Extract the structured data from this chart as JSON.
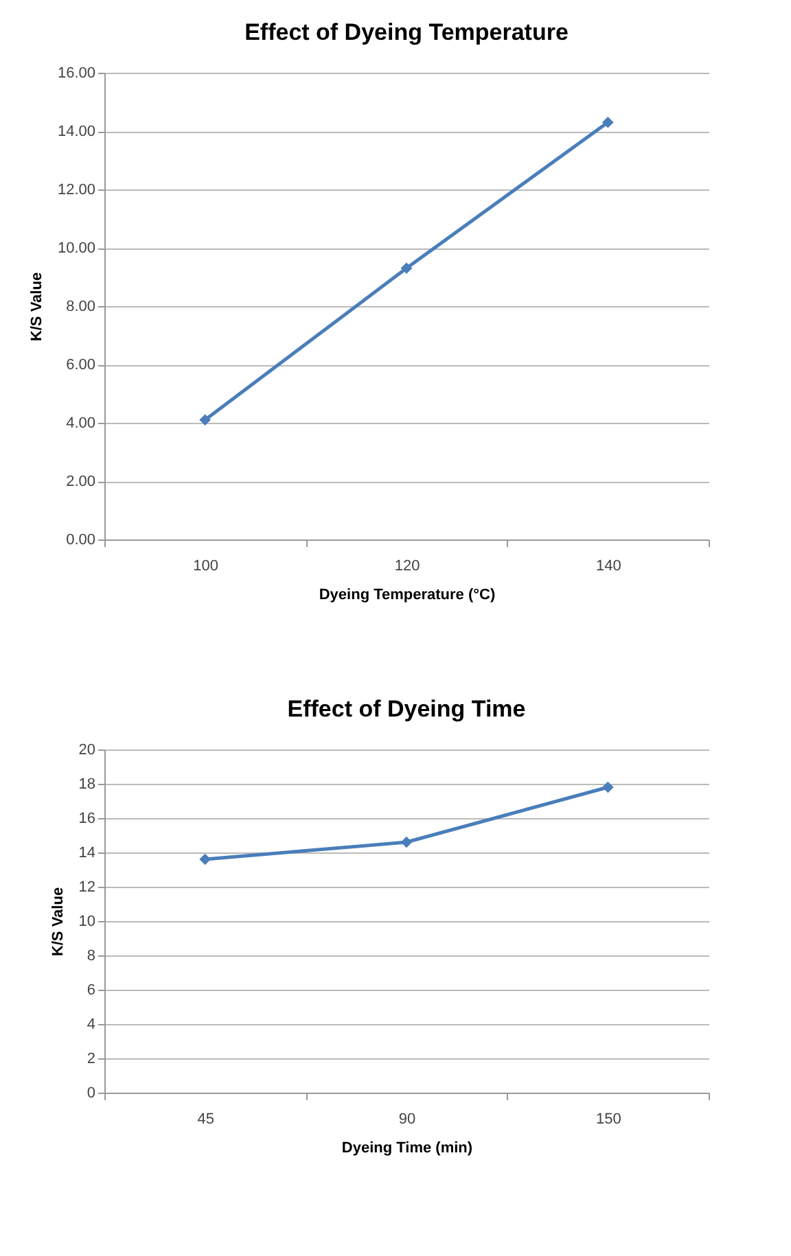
{
  "chart_data": [
    {
      "type": "line",
      "title": "Effect of Dyeing Temperature",
      "xlabel": "Dyeing Temperature (°C)",
      "ylabel": "K/S Value",
      "categories": [
        "100",
        "120",
        "140"
      ],
      "series": [
        {
          "color": "#4a7ebb",
          "values": [
            4.1,
            9.3,
            14.3
          ]
        }
      ],
      "ylim": [
        0,
        16
      ],
      "yticks": [
        {
          "value": 0,
          "label": "0.00"
        },
        {
          "value": 2,
          "label": "2.00"
        },
        {
          "value": 4,
          "label": "4.00"
        },
        {
          "value": 6,
          "label": "6.00"
        },
        {
          "value": 8,
          "label": "8.00"
        },
        {
          "value": 10,
          "label": "10.00"
        },
        {
          "value": 12,
          "label": "12.00"
        },
        {
          "value": 14,
          "label": "14.00"
        },
        {
          "value": 16,
          "label": "16.00"
        }
      ],
      "grid": "y",
      "marker": "diamond",
      "line_style": "solid"
    },
    {
      "type": "line",
      "title": "Effect of Dyeing Time",
      "xlabel": "Dyeing Time (min)",
      "ylabel": "K/S Value",
      "categories": [
        "45",
        "90",
        "150"
      ],
      "series": [
        {
          "color": "#4a7ebb",
          "values": [
            13.6,
            14.6,
            17.8
          ]
        }
      ],
      "ylim": [
        0,
        20
      ],
      "yticks": [
        0,
        2,
        4,
        6,
        8,
        10,
        12,
        14,
        16,
        18,
        20
      ],
      "grid": "y",
      "marker": "diamond",
      "line_style": "solid"
    }
  ]
}
